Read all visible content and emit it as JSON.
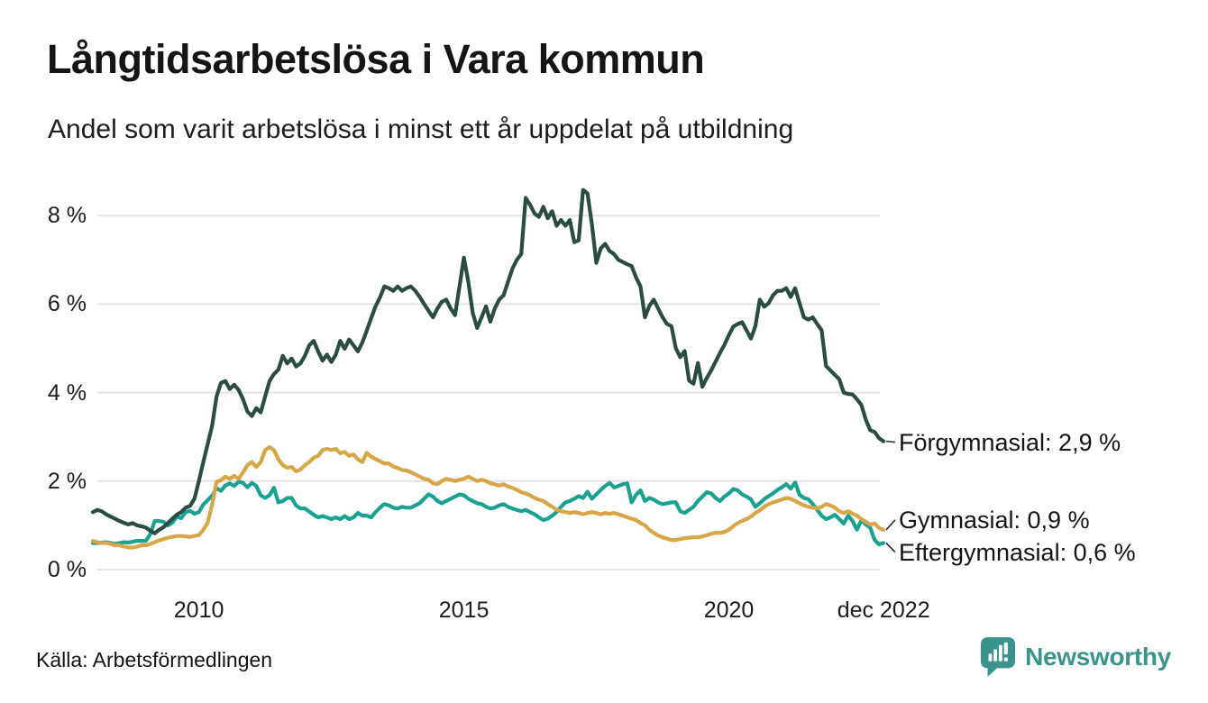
{
  "header": {
    "title": "Långtidsarbetslösa i Vara kommun",
    "subtitle": "Andel som varit arbetslösa i minst ett år uppdelat på utbildning"
  },
  "footer": {
    "source": "Källa: Arbetsförmedlingen",
    "brand": "Newsworthy"
  },
  "colors": {
    "forgymnasial": "#2a4c42",
    "gymnasial": "#d6a647",
    "eftergymnasial": "#1aa190",
    "gridline": "#e3e3e7",
    "text": "#1c1c1c",
    "brand_teal": "#3b948b",
    "connector": "#2b2b2b"
  },
  "chart_data": {
    "type": "line",
    "title": "Långtidsarbetslösa i Vara kommun",
    "subtitle": "Andel som varit arbetslösa i minst ett år uppdelat på utbildning",
    "unit": "%",
    "decimal_separator": ",",
    "x_unit": "month",
    "x_start": "2008-01",
    "x_end": "2022-12",
    "grid": true,
    "legend_position": "right-end-labels",
    "ylim": [
      0,
      8.8
    ],
    "yticks": [
      {
        "v": 0,
        "label": "0 %"
      },
      {
        "v": 2,
        "label": "2 %"
      },
      {
        "v": 4,
        "label": "4 %"
      },
      {
        "v": 6,
        "label": "6 %"
      },
      {
        "v": 8,
        "label": "8 %"
      }
    ],
    "xticks": [
      {
        "label": "2010",
        "year": 2010.0
      },
      {
        "label": "2015",
        "year": 2015.0
      },
      {
        "label": "2020",
        "year": 2020.0
      },
      {
        "label": "dec 2022",
        "year": 2022.92
      }
    ],
    "series": [
      {
        "name": "Förgymnasial",
        "end_label": "Förgymnasial: 2,9 %",
        "end_value": 2.9,
        "color": "#2a4c42",
        "values": [
          1.3,
          1.35,
          1.32,
          1.25,
          1.2,
          1.15,
          1.1,
          1.06,
          1.02,
          1.05,
          1.0,
          0.98,
          0.95,
          0.88,
          0.82,
          0.9,
          0.96,
          1.05,
          1.15,
          1.24,
          1.3,
          1.4,
          1.44,
          1.6,
          2.0,
          2.43,
          2.84,
          3.25,
          3.91,
          4.22,
          4.26,
          4.08,
          4.18,
          4.06,
          3.85,
          3.57,
          3.47,
          3.65,
          3.55,
          3.91,
          4.26,
          4.42,
          4.52,
          4.83,
          4.66,
          4.77,
          4.59,
          4.66,
          4.83,
          5.07,
          5.17,
          4.93,
          4.72,
          4.86,
          4.69,
          4.86,
          5.17,
          4.99,
          5.2,
          5.07,
          4.93,
          5.13,
          5.4,
          5.68,
          5.95,
          6.15,
          6.4,
          6.36,
          6.3,
          6.4,
          6.3,
          6.36,
          6.4,
          6.3,
          6.16,
          6.0,
          5.85,
          5.7,
          5.9,
          6.05,
          6.1,
          5.9,
          5.75,
          6.4,
          7.05,
          6.5,
          5.8,
          5.46,
          5.7,
          5.95,
          5.6,
          5.9,
          6.1,
          6.2,
          6.5,
          6.8,
          7.0,
          7.13,
          8.4,
          8.24,
          8.05,
          7.97,
          8.2,
          7.94,
          8.1,
          7.77,
          7.9,
          7.77,
          7.9,
          7.4,
          7.44,
          8.58,
          8.5,
          7.8,
          6.93,
          7.26,
          7.36,
          7.2,
          7.13,
          7.0,
          6.95,
          6.9,
          6.86,
          6.6,
          6.4,
          5.7,
          5.96,
          6.1,
          5.9,
          5.7,
          5.55,
          5.5,
          5.0,
          4.8,
          4.94,
          4.27,
          4.2,
          4.67,
          4.13,
          4.33,
          4.5,
          4.7,
          4.9,
          5.08,
          5.3,
          5.49,
          5.55,
          5.59,
          5.41,
          5.22,
          5.5,
          6.1,
          5.94,
          6.02,
          6.2,
          6.3,
          6.3,
          6.36,
          6.16,
          6.36,
          6.02,
          5.7,
          5.65,
          5.7,
          5.55,
          5.41,
          4.6,
          4.5,
          4.4,
          4.3,
          4.0,
          3.97,
          3.96,
          3.85,
          3.72,
          3.39,
          3.15,
          3.11,
          2.97,
          2.9
        ]
      },
      {
        "name": "Gymnasial",
        "end_label": "Gymnasial: 0,9 %",
        "end_value": 0.9,
        "color": "#d6a647",
        "values": [
          0.65,
          0.62,
          0.6,
          0.6,
          0.58,
          0.55,
          0.55,
          0.52,
          0.5,
          0.5,
          0.52,
          0.55,
          0.55,
          0.58,
          0.62,
          0.66,
          0.69,
          0.72,
          0.74,
          0.76,
          0.76,
          0.75,
          0.74,
          0.76,
          0.78,
          0.9,
          1.06,
          1.47,
          1.98,
          2.02,
          2.1,
          2.05,
          2.12,
          2.05,
          2.2,
          2.36,
          2.43,
          2.32,
          2.43,
          2.7,
          2.77,
          2.7,
          2.49,
          2.36,
          2.3,
          2.32,
          2.22,
          2.26,
          2.36,
          2.43,
          2.53,
          2.57,
          2.7,
          2.73,
          2.7,
          2.73,
          2.63,
          2.66,
          2.57,
          2.6,
          2.49,
          2.43,
          2.64,
          2.55,
          2.5,
          2.45,
          2.4,
          2.4,
          2.33,
          2.3,
          2.25,
          2.24,
          2.2,
          2.15,
          2.1,
          2.05,
          2.03,
          1.95,
          1.93,
          2.0,
          2.05,
          2.03,
          2.0,
          2.03,
          2.05,
          2.1,
          2.05,
          2.0,
          2.03,
          2.0,
          1.95,
          1.93,
          1.9,
          1.93,
          1.88,
          1.85,
          1.8,
          1.75,
          1.72,
          1.68,
          1.62,
          1.58,
          1.55,
          1.48,
          1.42,
          1.35,
          1.32,
          1.3,
          1.28,
          1.3,
          1.28,
          1.25,
          1.28,
          1.3,
          1.28,
          1.25,
          1.28,
          1.26,
          1.28,
          1.25,
          1.22,
          1.18,
          1.15,
          1.12,
          1.05,
          1.0,
          0.9,
          0.83,
          0.77,
          0.73,
          0.7,
          0.67,
          0.67,
          0.69,
          0.71,
          0.72,
          0.73,
          0.73,
          0.75,
          0.78,
          0.81,
          0.83,
          0.83,
          0.85,
          0.9,
          0.98,
          1.05,
          1.1,
          1.14,
          1.2,
          1.28,
          1.34,
          1.42,
          1.48,
          1.52,
          1.55,
          1.58,
          1.62,
          1.6,
          1.55,
          1.5,
          1.45,
          1.42,
          1.4,
          1.38,
          1.42,
          1.48,
          1.45,
          1.4,
          1.32,
          1.28,
          1.32,
          1.26,
          1.22,
          1.14,
          1.08,
          1.02,
          1.04,
          0.94,
          0.9
        ]
      },
      {
        "name": "Eftergymnasial",
        "end_label": "Eftergymnasial: 0,6 %",
        "end_value": 0.6,
        "color": "#1aa190",
        "values": [
          0.6,
          0.6,
          0.61,
          0.62,
          0.6,
          0.58,
          0.6,
          0.62,
          0.61,
          0.63,
          0.65,
          0.65,
          0.65,
          0.8,
          1.1,
          1.1,
          1.08,
          1.0,
          1.06,
          1.2,
          1.16,
          1.3,
          1.33,
          1.26,
          1.3,
          1.47,
          1.57,
          1.67,
          1.84,
          1.78,
          1.9,
          1.95,
          1.89,
          1.99,
          1.96,
          1.86,
          1.96,
          1.89,
          1.68,
          1.62,
          1.68,
          1.85,
          1.52,
          1.55,
          1.62,
          1.62,
          1.45,
          1.38,
          1.38,
          1.31,
          1.24,
          1.18,
          1.21,
          1.18,
          1.14,
          1.18,
          1.14,
          1.21,
          1.14,
          1.18,
          1.28,
          1.22,
          1.22,
          1.18,
          1.3,
          1.4,
          1.48,
          1.45,
          1.4,
          1.38,
          1.42,
          1.4,
          1.4,
          1.45,
          1.5,
          1.6,
          1.7,
          1.65,
          1.55,
          1.5,
          1.55,
          1.6,
          1.65,
          1.7,
          1.68,
          1.6,
          1.55,
          1.5,
          1.48,
          1.42,
          1.38,
          1.4,
          1.45,
          1.48,
          1.42,
          1.38,
          1.35,
          1.32,
          1.35,
          1.3,
          1.25,
          1.18,
          1.12,
          1.15,
          1.22,
          1.3,
          1.42,
          1.52,
          1.55,
          1.6,
          1.66,
          1.62,
          1.76,
          1.6,
          1.7,
          1.8,
          1.89,
          1.96,
          1.86,
          1.89,
          1.93,
          1.95,
          1.52,
          1.69,
          1.79,
          1.55,
          1.62,
          1.58,
          1.52,
          1.48,
          1.5,
          1.52,
          1.52,
          1.32,
          1.28,
          1.35,
          1.42,
          1.55,
          1.65,
          1.75,
          1.72,
          1.62,
          1.55,
          1.65,
          1.72,
          1.82,
          1.79,
          1.7,
          1.65,
          1.59,
          1.42,
          1.5,
          1.59,
          1.66,
          1.72,
          1.8,
          1.86,
          1.93,
          1.83,
          1.97,
          1.69,
          1.62,
          1.59,
          1.48,
          1.35,
          1.22,
          1.14,
          1.18,
          1.24,
          1.14,
          1.04,
          1.22,
          1.1,
          0.9,
          1.12,
          1.02,
          0.95,
          0.67,
          0.57,
          0.6
        ]
      }
    ]
  }
}
